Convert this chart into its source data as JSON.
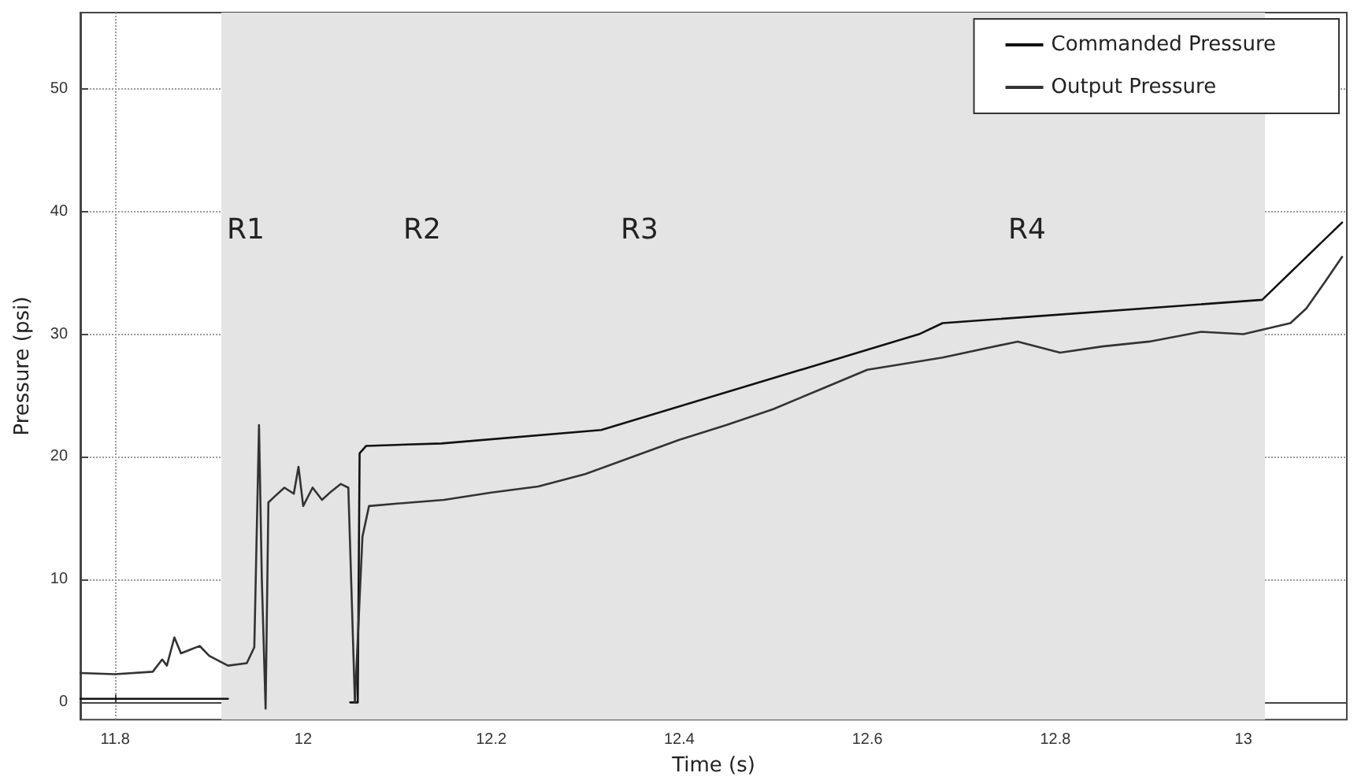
{
  "chart_data": {
    "type": "line",
    "xlabel": "Time (s)",
    "ylabel": "Pressure (psi)",
    "xlim": [
      11.763,
      13.11
    ],
    "ylim": [
      -1.4,
      56.2
    ],
    "xticks": [
      11.8,
      12,
      12.2,
      12.4,
      12.6,
      12.8,
      13
    ],
    "yticks": [
      0,
      10,
      20,
      30,
      40,
      50
    ],
    "grid": true,
    "legend": "top right",
    "line_style": "solid",
    "marker": "none",
    "bands": [
      {
        "axis": "x",
        "from": 11.913,
        "to": 13.023,
        "color": "#e4e4e4"
      }
    ],
    "annotations": [
      "R1",
      "R2",
      "R3",
      "R4"
    ],
    "series": [
      {
        "name": "Commanded Pressure",
        "color": "#111111",
        "x": [
          11.763,
          11.92,
          11.921,
          12.047,
          12.05,
          12.058,
          12.06,
          12.067,
          12.147,
          12.317,
          12.655,
          12.68,
          13.02,
          13.105
        ],
        "values": [
          0.3,
          0.3,
          null,
          null,
          0,
          0,
          20.3,
          20.9,
          21.1,
          22.2,
          30.0,
          30.9,
          32.8,
          39.1
        ]
      },
      {
        "name": "Output Pressure",
        "color": "#333333",
        "x": [
          11.763,
          11.8,
          11.84,
          11.85,
          11.855,
          11.863,
          11.87,
          11.88,
          11.89,
          11.9,
          11.92,
          11.94,
          11.948,
          11.953,
          11.956,
          11.96,
          11.963,
          11.97,
          11.98,
          11.99,
          11.995,
          12.0,
          12.01,
          12.02,
          12.03,
          12.04,
          12.048,
          12.055,
          12.063,
          12.07,
          12.1,
          12.15,
          12.2,
          12.25,
          12.3,
          12.35,
          12.4,
          12.45,
          12.5,
          12.55,
          12.6,
          12.68,
          12.76,
          12.805,
          12.85,
          12.9,
          12.955,
          13.0,
          13.05,
          13.067,
          13.088,
          13.105
        ],
        "values": [
          2.4,
          2.3,
          2.5,
          3.5,
          3.0,
          5.3,
          4.0,
          4.3,
          4.6,
          3.8,
          3.0,
          3.2,
          4.5,
          22.6,
          10,
          -0.5,
          16.3,
          16.8,
          17.5,
          17.0,
          19.2,
          16.0,
          17.5,
          16.5,
          17.2,
          17.8,
          17.5,
          0,
          13.5,
          16.0,
          16.2,
          16.5,
          17.1,
          17.6,
          18.6,
          20.0,
          21.4,
          22.6,
          23.9,
          25.5,
          27.1,
          28.1,
          29.4,
          28.5,
          29.0,
          29.4,
          30.2,
          30.0,
          30.9,
          32.1,
          34.4,
          36.3
        ]
      }
    ]
  }
}
